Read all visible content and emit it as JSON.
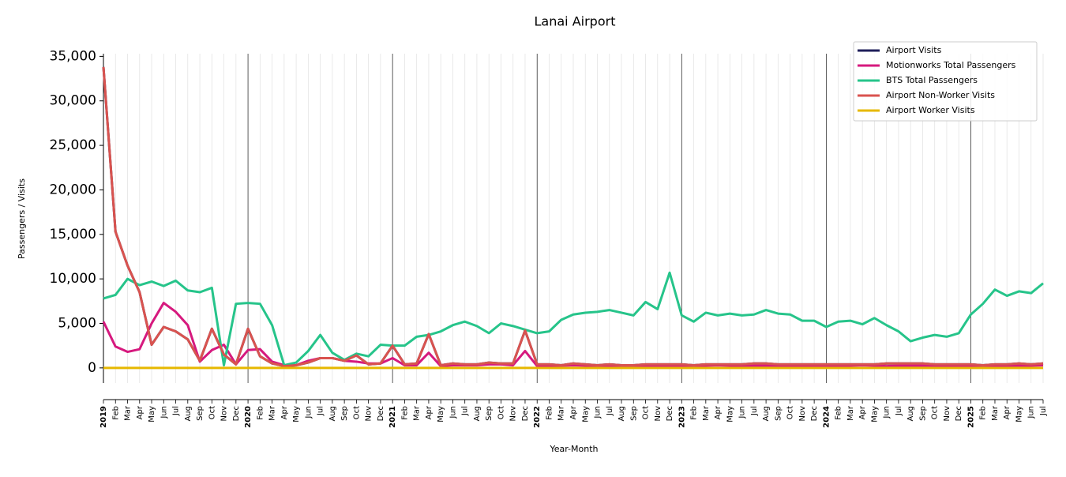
{
  "chart_data": {
    "type": "line",
    "title": "Lanai Airport",
    "xlabel": "Year-Month",
    "ylabel": "Passengers / Visits",
    "categories": [
      "2019",
      "Feb",
      "Mar",
      "Apr",
      "May",
      "Jun",
      "Jul",
      "Aug",
      "Sep",
      "Oct",
      "Nov",
      "Dec",
      "2020",
      "Feb",
      "Mar",
      "Apr",
      "May",
      "Jun",
      "Jul",
      "Aug",
      "Sep",
      "Oct",
      "Nov",
      "Dec",
      "2021",
      "Feb",
      "Mar",
      "Apr",
      "May",
      "Jun",
      "Jul",
      "Aug",
      "Sep",
      "Oct",
      "Nov",
      "Dec",
      "2022",
      "Feb",
      "Mar",
      "Apr",
      "May",
      "Jun",
      "Jul",
      "Aug",
      "Sep",
      "Oct",
      "Nov",
      "Dec",
      "2023",
      "Feb",
      "Mar",
      "Apr",
      "May",
      "Jun",
      "Jul",
      "Aug",
      "Sep",
      "Oct",
      "Nov",
      "Dec",
      "2024",
      "Feb",
      "Mar",
      "Apr",
      "May",
      "Jun",
      "Jul",
      "Aug",
      "Sep",
      "Oct",
      "Nov",
      "Dec",
      "2025",
      "Feb",
      "Mar",
      "Apr",
      "May",
      "Jun",
      "Jul"
    ],
    "series": [
      {
        "name": "Airport Visits",
        "color": "#1f1f5a",
        "values": [
          33800,
          15300,
          11500,
          8500,
          2600,
          4600,
          4100,
          3200,
          800,
          4400,
          1500,
          400,
          4400,
          1300,
          500,
          200,
          300,
          600,
          1100,
          1100,
          800,
          1400,
          400,
          500,
          2500,
          400,
          500,
          3800,
          300,
          500,
          400,
          400,
          600,
          500,
          500,
          4200,
          400,
          400,
          300,
          500,
          400,
          300,
          400,
          300,
          300,
          400,
          400,
          400,
          400,
          300,
          400,
          400,
          400,
          400,
          500,
          500,
          400,
          400,
          400,
          400,
          400,
          400,
          400,
          400,
          400,
          500,
          500,
          500,
          500,
          400,
          400,
          400,
          400,
          300,
          400,
          400,
          500,
          400,
          500
        ]
      },
      {
        "name": "Motionworks Total Passengers",
        "color": "#d6197e",
        "values": [
          5200,
          2400,
          1800,
          2100,
          5000,
          7300,
          6300,
          4800,
          700,
          2000,
          2600,
          400,
          2000,
          2100,
          700,
          300,
          300,
          800,
          1100,
          1100,
          800,
          700,
          500,
          500,
          1100,
          300,
          300,
          1700,
          200,
          300,
          300,
          300,
          400,
          400,
          300,
          1900,
          200,
          200,
          250,
          300,
          250,
          200,
          250,
          250,
          250,
          250,
          250,
          250,
          200,
          200,
          250,
          300,
          250,
          200,
          250,
          250,
          250,
          250,
          250,
          250,
          200,
          200,
          250,
          300,
          250,
          200,
          250,
          250,
          250,
          250,
          250,
          250,
          250,
          250,
          250,
          250,
          250,
          250,
          300
        ]
      },
      {
        "name": "BTS Total Passengers",
        "color": "#26c48a",
        "values": [
          7800,
          8200,
          10000,
          9300,
          9700,
          9200,
          9800,
          8700,
          8500,
          9000,
          300,
          7200,
          7300,
          7200,
          4800,
          300,
          600,
          1900,
          3700,
          1700,
          900,
          1600,
          1300,
          2600,
          2500,
          2500,
          3500,
          3700,
          4100,
          4800,
          5200,
          4700,
          3900,
          5000,
          4700,
          4300,
          3900,
          4100,
          5400,
          6000,
          6200,
          6300,
          6500,
          6200,
          5900,
          7400,
          6600,
          10700,
          5900,
          5200,
          6200,
          5900,
          6100,
          5900,
          6000,
          6500,
          6100,
          6000,
          5300,
          5300,
          4600,
          5200,
          5300,
          4900,
          5600,
          4800,
          4100,
          3000,
          3400,
          3700,
          3500,
          3900,
          6000,
          7200,
          8800,
          8100,
          8600,
          8400,
          9500
        ]
      },
      {
        "name": "Airport Non-Worker Visits",
        "color": "#d9534f",
        "values": [
          33800,
          15300,
          11500,
          8500,
          2600,
          4600,
          4100,
          3200,
          800,
          4400,
          1500,
          400,
          4400,
          1300,
          500,
          200,
          300,
          600,
          1100,
          1100,
          800,
          1400,
          400,
          500,
          2500,
          400,
          500,
          3800,
          300,
          500,
          400,
          400,
          600,
          500,
          500,
          4200,
          400,
          400,
          300,
          500,
          400,
          300,
          400,
          300,
          300,
          400,
          400,
          400,
          400,
          300,
          400,
          400,
          400,
          400,
          500,
          500,
          400,
          400,
          400,
          400,
          400,
          400,
          400,
          400,
          400,
          500,
          500,
          500,
          500,
          400,
          400,
          400,
          400,
          300,
          400,
          400,
          500,
          400,
          500
        ]
      },
      {
        "name": "Airport Worker Visits",
        "color": "#e6b800",
        "values": [
          0,
          0,
          0,
          0,
          0,
          0,
          0,
          0,
          0,
          0,
          0,
          0,
          0,
          0,
          0,
          0,
          0,
          0,
          0,
          0,
          0,
          0,
          0,
          0,
          0,
          0,
          0,
          0,
          0,
          0,
          0,
          0,
          0,
          0,
          0,
          0,
          0,
          0,
          0,
          0,
          0,
          0,
          0,
          0,
          0,
          0,
          0,
          0,
          0,
          0,
          0,
          0,
          0,
          0,
          0,
          0,
          0,
          0,
          0,
          0,
          0,
          0,
          0,
          0,
          0,
          0,
          0,
          0,
          0,
          0,
          0,
          0,
          0,
          0,
          0,
          0,
          0,
          0,
          0
        ]
      }
    ],
    "ylim": [
      -1700,
      35300
    ],
    "yticks": [
      {
        "value": 0,
        "label": "0"
      },
      {
        "value": 5000,
        "label": "5,000"
      },
      {
        "value": 10000,
        "label": "10,000"
      },
      {
        "value": 15000,
        "label": "15,000"
      },
      {
        "value": 20000,
        "label": "20,000"
      },
      {
        "value": 25000,
        "label": "25,000"
      },
      {
        "value": 30000,
        "label": "30,000"
      },
      {
        "value": 35000,
        "label": "35,000"
      }
    ],
    "grid": true,
    "legend": "upper right"
  }
}
